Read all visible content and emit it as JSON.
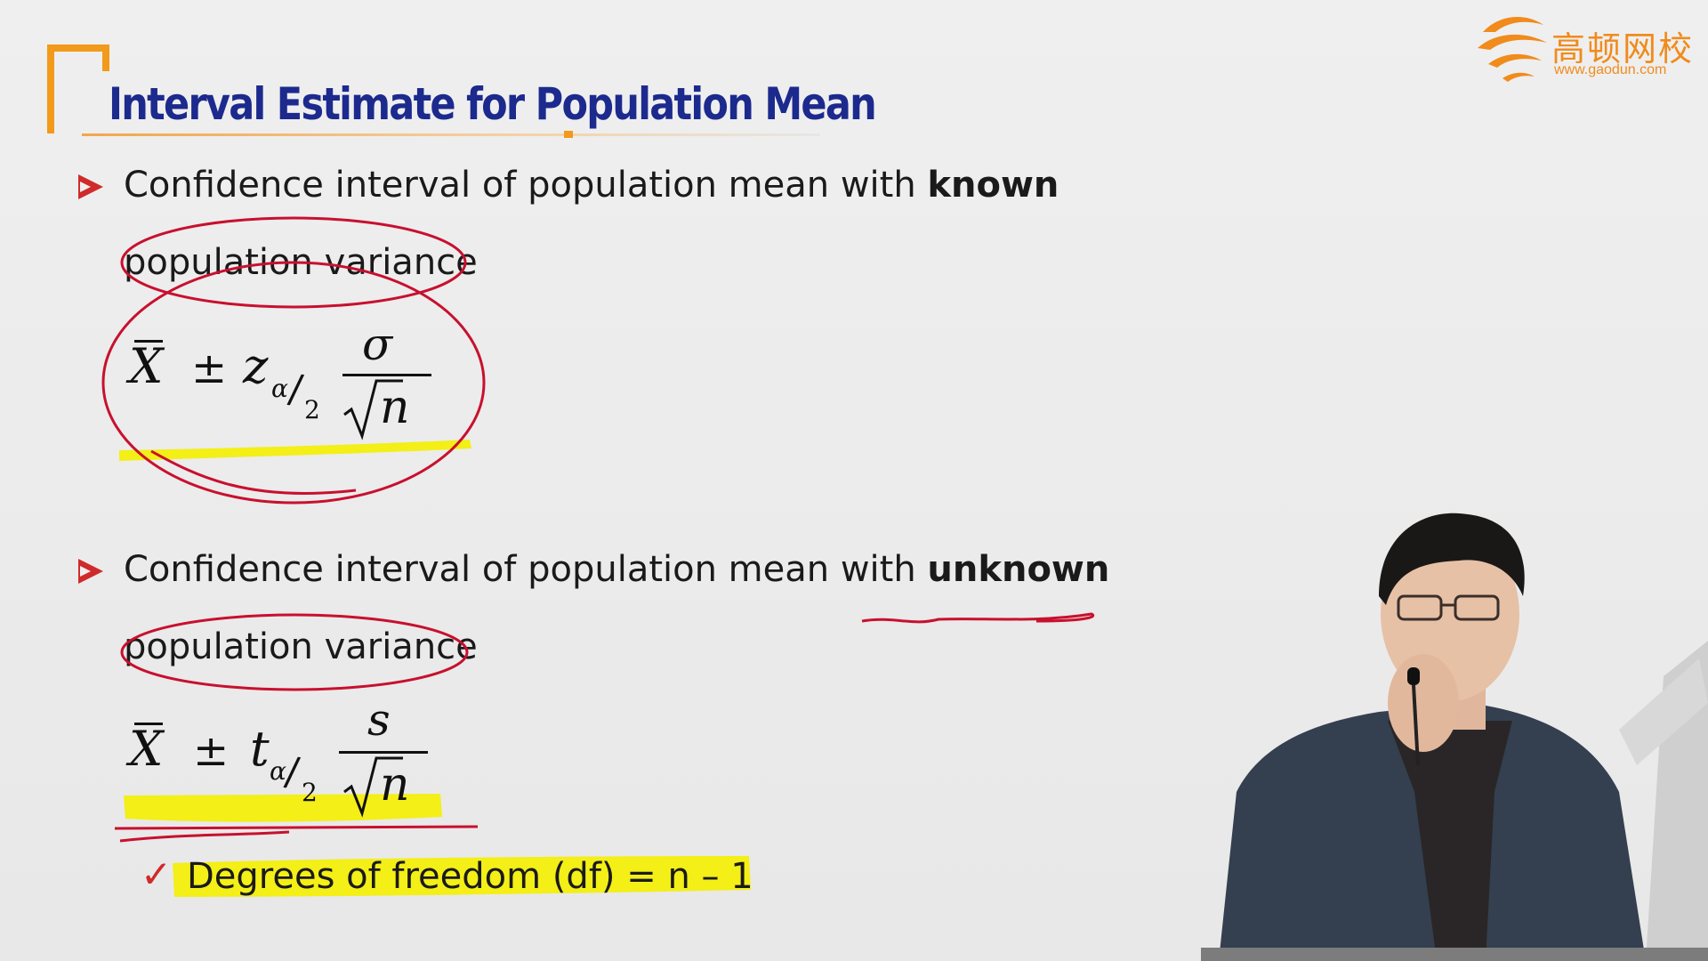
{
  "slide": {
    "title": "Interval Estimate for Population Mean",
    "logo": {
      "brand": "高顿网校",
      "url": "www.gaodun.com"
    },
    "bullet1": {
      "text_prefix": "Confidence interval of population mean with ",
      "text_bold": "known",
      "text_line2": "population variance",
      "formula": {
        "xbar": "X",
        "pm": "±",
        "critical": "z",
        "sub_alpha": "α",
        "sub_slash": "/",
        "sub_two": "2",
        "numerator": "σ",
        "denominator": "n"
      }
    },
    "bullet2": {
      "text_prefix": "Confidence interval of population mean with ",
      "text_bold": "unknown",
      "text_line2": "population variance",
      "formula": {
        "xbar": "X",
        "pm": "±",
        "critical": "t",
        "sub_alpha": "α",
        "sub_slash": "/",
        "sub_two": "2",
        "numerator": "s",
        "denominator": "n"
      },
      "check_mark": "✓",
      "check_text": "Degrees of freedom (df) = n – 1"
    }
  },
  "colors": {
    "title_blue": "#1c2a8e",
    "bracket_orange": "#f29a1a",
    "bullet_red": "#d02a2a",
    "annotation_red": "#c8102e",
    "highlight_yellow": "#f4f000"
  },
  "icons": {
    "logo": "gaodun-swoosh-logo",
    "bullet": "arrowhead-bullet",
    "check": "check-mark"
  }
}
